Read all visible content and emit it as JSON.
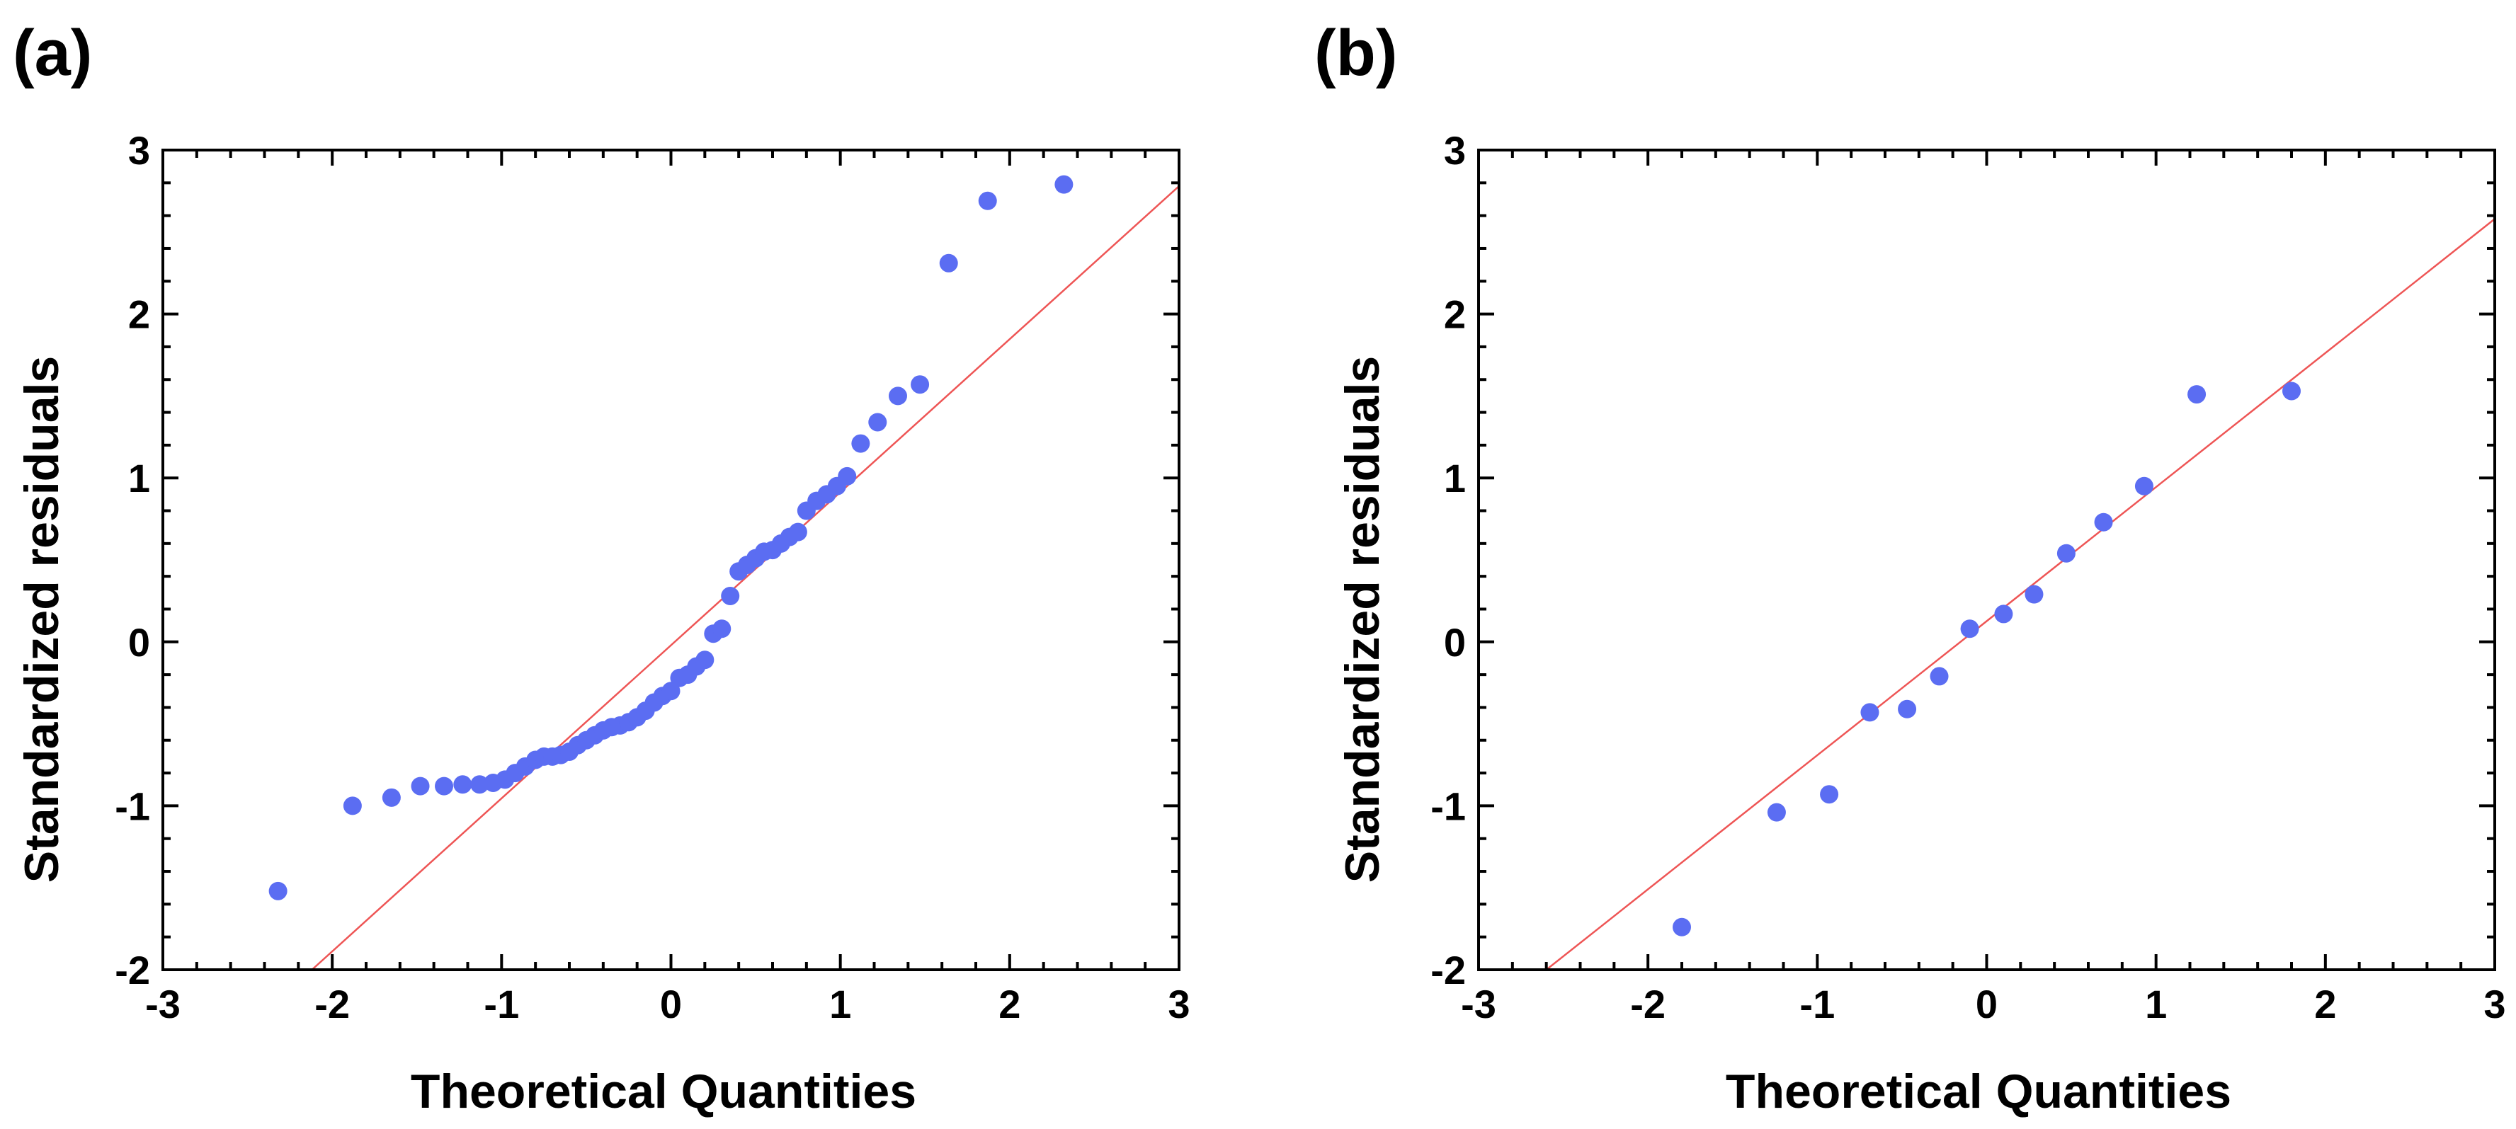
{
  "colors": {
    "points": "#5b6df2",
    "reference_line": "#ee5555",
    "axes": "#000000"
  },
  "chart_data": [
    {
      "type": "scatter",
      "panel_label": "(a)",
      "title": "",
      "xlabel": "Theoretical Quantities",
      "ylabel": "Standardized residuals",
      "xlim": [
        -3,
        3
      ],
      "ylim": [
        -2,
        3
      ],
      "xticks": [
        "-3",
        "-2",
        "-1",
        "0",
        "1",
        "2",
        "3"
      ],
      "yticks": [
        "-2",
        "-1",
        "0",
        "1",
        "2",
        "3"
      ],
      "grid": false,
      "reference_line": {
        "x": [
          -2.12,
          3.0
        ],
        "y": [
          -2.0,
          2.78
        ]
      },
      "points": [
        [
          -2.32,
          -1.52
        ],
        [
          -1.88,
          -1.0
        ],
        [
          -1.65,
          -0.95
        ],
        [
          -1.48,
          -0.88
        ],
        [
          -1.34,
          -0.88
        ],
        [
          -1.23,
          -0.87
        ],
        [
          -1.13,
          -0.87
        ],
        [
          -1.05,
          -0.86
        ],
        [
          -0.98,
          -0.84
        ],
        [
          -0.92,
          -0.8
        ],
        [
          -0.86,
          -0.76
        ],
        [
          -0.8,
          -0.72
        ],
        [
          -0.75,
          -0.7
        ],
        [
          -0.7,
          -0.7
        ],
        [
          -0.65,
          -0.69
        ],
        [
          -0.6,
          -0.67
        ],
        [
          -0.55,
          -0.63
        ],
        [
          -0.5,
          -0.6
        ],
        [
          -0.45,
          -0.57
        ],
        [
          -0.4,
          -0.54
        ],
        [
          -0.35,
          -0.52
        ],
        [
          -0.3,
          -0.51
        ],
        [
          -0.25,
          -0.49
        ],
        [
          -0.2,
          -0.46
        ],
        [
          -0.15,
          -0.42
        ],
        [
          -0.1,
          -0.37
        ],
        [
          -0.05,
          -0.33
        ],
        [
          0.0,
          -0.3
        ],
        [
          0.05,
          -0.22
        ],
        [
          0.1,
          -0.2
        ],
        [
          0.15,
          -0.15
        ],
        [
          0.2,
          -0.11
        ],
        [
          0.25,
          0.05
        ],
        [
          0.3,
          0.08
        ],
        [
          0.35,
          0.28
        ],
        [
          0.4,
          0.43
        ],
        [
          0.45,
          0.47
        ],
        [
          0.5,
          0.51
        ],
        [
          0.55,
          0.55
        ],
        [
          0.6,
          0.56
        ],
        [
          0.65,
          0.6
        ],
        [
          0.7,
          0.64
        ],
        [
          0.75,
          0.67
        ],
        [
          0.8,
          0.8
        ],
        [
          0.86,
          0.86
        ],
        [
          0.92,
          0.9
        ],
        [
          0.98,
          0.95
        ],
        [
          1.04,
          1.01
        ],
        [
          1.12,
          1.21
        ],
        [
          1.22,
          1.34
        ],
        [
          1.34,
          1.5
        ],
        [
          1.47,
          1.57
        ],
        [
          1.64,
          2.31
        ],
        [
          1.87,
          2.69
        ],
        [
          2.32,
          2.79
        ]
      ]
    },
    {
      "type": "scatter",
      "panel_label": "(b)",
      "title": "",
      "xlabel": "Theoretical Quantities",
      "ylabel": "Standardized residuals",
      "xlim": [
        -3,
        3
      ],
      "ylim": [
        -2,
        3
      ],
      "xticks": [
        "-3",
        "-2",
        "-1",
        "0",
        "1",
        "2",
        "3"
      ],
      "yticks": [
        "-2",
        "-1",
        "0",
        "1",
        "2",
        "3"
      ],
      "grid": false,
      "reference_line": {
        "x": [
          -2.6,
          3.0
        ],
        "y": [
          -2.0,
          2.58
        ]
      },
      "points": [
        [
          -1.8,
          -1.74
        ],
        [
          -1.24,
          -1.04
        ],
        [
          -0.93,
          -0.93
        ],
        [
          -0.69,
          -0.43
        ],
        [
          -0.47,
          -0.41
        ],
        [
          -0.28,
          -0.21
        ],
        [
          -0.1,
          0.08
        ],
        [
          0.1,
          0.17
        ],
        [
          0.28,
          0.29
        ],
        [
          0.47,
          0.54
        ],
        [
          0.69,
          0.73
        ],
        [
          0.93,
          0.95
        ],
        [
          1.24,
          1.51
        ],
        [
          1.8,
          1.53
        ]
      ]
    }
  ]
}
